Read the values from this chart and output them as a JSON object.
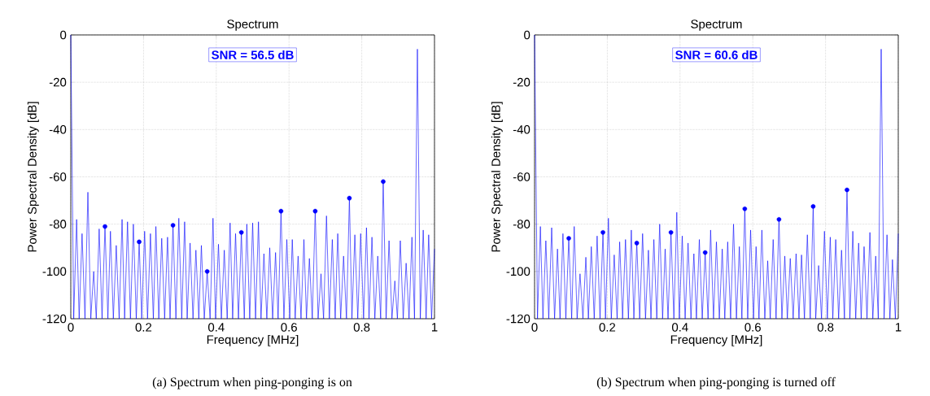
{
  "chart_data": [
    {
      "type": "line",
      "title": "Spectrum",
      "xlabel": "Frequency [MHz]",
      "ylabel": "Power Spectral Density [dB]",
      "xlim": [
        0,
        1
      ],
      "ylim": [
        -120,
        0
      ],
      "xticks": [
        0,
        0.2,
        0.4,
        0.6,
        0.8,
        1
      ],
      "yticks": [
        -120,
        -100,
        -80,
        -60,
        -40,
        -20,
        0
      ],
      "grid": true,
      "x": [
        0,
        0.008,
        0.016,
        0.023,
        0.031,
        0.039,
        0.047,
        0.055,
        0.063,
        0.07,
        0.078,
        0.086,
        0.094,
        0.102,
        0.109,
        0.117,
        0.125,
        0.133,
        0.141,
        0.148,
        0.156,
        0.164,
        0.172,
        0.18,
        0.188,
        0.195,
        0.203,
        0.211,
        0.219,
        0.227,
        0.234,
        0.242,
        0.25,
        0.258,
        0.266,
        0.273,
        0.281,
        0.289,
        0.297,
        0.305,
        0.313,
        0.32,
        0.328,
        0.336,
        0.344,
        0.352,
        0.359,
        0.367,
        0.375,
        0.383,
        0.391,
        0.398,
        0.406,
        0.414,
        0.422,
        0.43,
        0.438,
        0.445,
        0.453,
        0.461,
        0.469,
        0.477,
        0.484,
        0.492,
        0.5,
        0.508,
        0.516,
        0.523,
        0.531,
        0.539,
        0.547,
        0.555,
        0.563,
        0.57,
        0.578,
        0.586,
        0.594,
        0.602,
        0.609,
        0.617,
        0.625,
        0.633,
        0.641,
        0.648,
        0.656,
        0.664,
        0.672,
        0.68,
        0.688,
        0.695,
        0.703,
        0.711,
        0.719,
        0.727,
        0.734,
        0.742,
        0.75,
        0.758,
        0.766,
        0.773,
        0.781,
        0.789,
        0.797,
        0.805,
        0.813,
        0.82,
        0.828,
        0.836,
        0.844,
        0.852,
        0.859,
        0.867,
        0.875,
        0.883,
        0.891,
        0.898,
        0.906,
        0.914,
        0.922,
        0.93,
        0.938,
        0.945,
        0.953,
        0.961,
        0.969,
        0.977,
        0.984,
        0.992,
        1
      ],
      "series": [
        {
          "color": "#0000ff",
          "marker": "none",
          "line_style": "solid",
          "values": [
            0,
            -120,
            -78,
            -120,
            -84,
            -120,
            -66.5,
            -120,
            -100,
            -120,
            -82,
            -120,
            -81,
            -120,
            -83,
            -120,
            -89,
            -120,
            -78,
            -120,
            -79,
            -120,
            -80,
            -120,
            -87.5,
            -120,
            -83,
            -120,
            -84,
            -120,
            -81,
            -120,
            -86,
            -120,
            -85.5,
            -120,
            -80.5,
            -120,
            -77.5,
            -120,
            -79,
            -120,
            -88,
            -120,
            -91,
            -120,
            -89,
            -120,
            -100,
            -120,
            -77.5,
            -120,
            -88.5,
            -120,
            -91,
            -120,
            -79.5,
            -120,
            -84,
            -120,
            -83.5,
            -120,
            -80,
            -120,
            -79.5,
            -120,
            -79,
            -120,
            -92.5,
            -120,
            -90,
            -120,
            -92,
            -120,
            -74.5,
            -120,
            -86.5,
            -120,
            -86.5,
            -120,
            -93.5,
            -120,
            -86.5,
            -120,
            -94.5,
            -120,
            -74.5,
            -120,
            -101,
            -120,
            -76.5,
            -120,
            -86.5,
            -120,
            -84,
            -120,
            -93.5,
            -120,
            -69,
            -120,
            -84.5,
            -120,
            -84,
            -120,
            -81.5,
            -120,
            -85.5,
            -120,
            -93.5,
            -120,
            -62,
            -120,
            -87,
            -120,
            -104,
            -120,
            -87,
            -120,
            -96.5,
            -120,
            -85.5,
            -120,
            -6,
            -120,
            -82.5,
            -120,
            -84.5,
            -120,
            -90.5
          ]
        },
        {
          "type": "scatter",
          "color": "#0000ff",
          "marker": "circle",
          "x": [
            0.094,
            0.188,
            0.281,
            0.375,
            0.469,
            0.578,
            0.672,
            0.766,
            0.859
          ],
          "values": [
            -81,
            -87.5,
            -80.5,
            -100,
            -83.5,
            -74.5,
            -74.5,
            -69,
            -62
          ]
        }
      ],
      "annotations": [
        "SNR = 56.5 dB",
        "(a) Spectrum when ping-ponging is on"
      ]
    },
    {
      "type": "line",
      "title": "Spectrum",
      "xlabel": "Frequency [MHz]",
      "ylabel": "Power Spectral Density [dB]",
      "xlim": [
        0,
        1
      ],
      "ylim": [
        -120,
        0
      ],
      "xticks": [
        0,
        0.2,
        0.4,
        0.6,
        0.8,
        1
      ],
      "yticks": [
        -120,
        -100,
        -80,
        -60,
        -40,
        -20,
        0
      ],
      "grid": true,
      "x": [
        0,
        0.008,
        0.016,
        0.023,
        0.031,
        0.039,
        0.047,
        0.055,
        0.063,
        0.07,
        0.078,
        0.086,
        0.094,
        0.102,
        0.109,
        0.117,
        0.125,
        0.133,
        0.141,
        0.148,
        0.156,
        0.164,
        0.172,
        0.18,
        0.188,
        0.195,
        0.203,
        0.211,
        0.219,
        0.227,
        0.234,
        0.242,
        0.25,
        0.258,
        0.266,
        0.273,
        0.281,
        0.289,
        0.297,
        0.305,
        0.313,
        0.32,
        0.328,
        0.336,
        0.344,
        0.352,
        0.359,
        0.367,
        0.375,
        0.383,
        0.391,
        0.398,
        0.406,
        0.414,
        0.422,
        0.43,
        0.438,
        0.445,
        0.453,
        0.461,
        0.469,
        0.477,
        0.484,
        0.492,
        0.5,
        0.508,
        0.516,
        0.523,
        0.531,
        0.539,
        0.547,
        0.555,
        0.563,
        0.57,
        0.578,
        0.586,
        0.594,
        0.602,
        0.609,
        0.617,
        0.625,
        0.633,
        0.641,
        0.648,
        0.656,
        0.664,
        0.672,
        0.68,
        0.688,
        0.695,
        0.703,
        0.711,
        0.719,
        0.727,
        0.734,
        0.742,
        0.75,
        0.758,
        0.766,
        0.773,
        0.781,
        0.789,
        0.797,
        0.805,
        0.813,
        0.82,
        0.828,
        0.836,
        0.844,
        0.852,
        0.859,
        0.867,
        0.875,
        0.883,
        0.891,
        0.898,
        0.906,
        0.914,
        0.922,
        0.93,
        0.938,
        0.945,
        0.953,
        0.961,
        0.969,
        0.977,
        0.984,
        0.992,
        1
      ],
      "series": [
        {
          "color": "#0000ff",
          "marker": "none",
          "line_style": "solid",
          "values": [
            0,
            -120,
            -81,
            -120,
            -87,
            -120,
            -81.5,
            -120,
            -90.5,
            -120,
            -84,
            -120,
            -86,
            -120,
            -81,
            -120,
            -101,
            -120,
            -94,
            -120,
            -89.5,
            -120,
            -85,
            -120,
            -83.5,
            -120,
            -77.5,
            -120,
            -93,
            -120,
            -87.5,
            -120,
            -86.5,
            -120,
            -82.5,
            -120,
            -88,
            -120,
            -84,
            -120,
            -91,
            -120,
            -86.5,
            -120,
            -80,
            -120,
            -90.5,
            -120,
            -83.5,
            -120,
            -75,
            -120,
            -85,
            -120,
            -88,
            -120,
            -92.5,
            -120,
            -86.5,
            -120,
            -92,
            -120,
            -82.5,
            -120,
            -87.5,
            -120,
            -90.5,
            -120,
            -87.5,
            -120,
            -80,
            -120,
            -89.5,
            -120,
            -73.5,
            -120,
            -82.5,
            -120,
            -89.5,
            -120,
            -82.5,
            -120,
            -95.5,
            -120,
            -86.5,
            -120,
            -78,
            -120,
            -93.5,
            -120,
            -94.5,
            -120,
            -92.5,
            -120,
            -93,
            -120,
            -84.5,
            -120,
            -72.5,
            -120,
            -97.5,
            -120,
            -83,
            -120,
            -85.5,
            -120,
            -86.5,
            -120,
            -91,
            -120,
            -65.5,
            -120,
            -83,
            -120,
            -88,
            -120,
            -89.5,
            -120,
            -83.5,
            -120,
            -93.5,
            -120,
            -6,
            -120,
            -84.5,
            -120,
            -95,
            -120,
            -84
          ]
        },
        {
          "type": "scatter",
          "color": "#0000ff",
          "marker": "circle",
          "x": [
            0.094,
            0.188,
            0.281,
            0.375,
            0.469,
            0.578,
            0.672,
            0.766,
            0.859
          ],
          "values": [
            -86,
            -83.5,
            -88,
            -83.5,
            -92,
            -73.5,
            -78,
            -72.5,
            -65.5
          ]
        }
      ],
      "annotations": [
        "SNR = 60.6 dB",
        "(b) Spectrum when ping-ponging is turned off"
      ]
    }
  ]
}
